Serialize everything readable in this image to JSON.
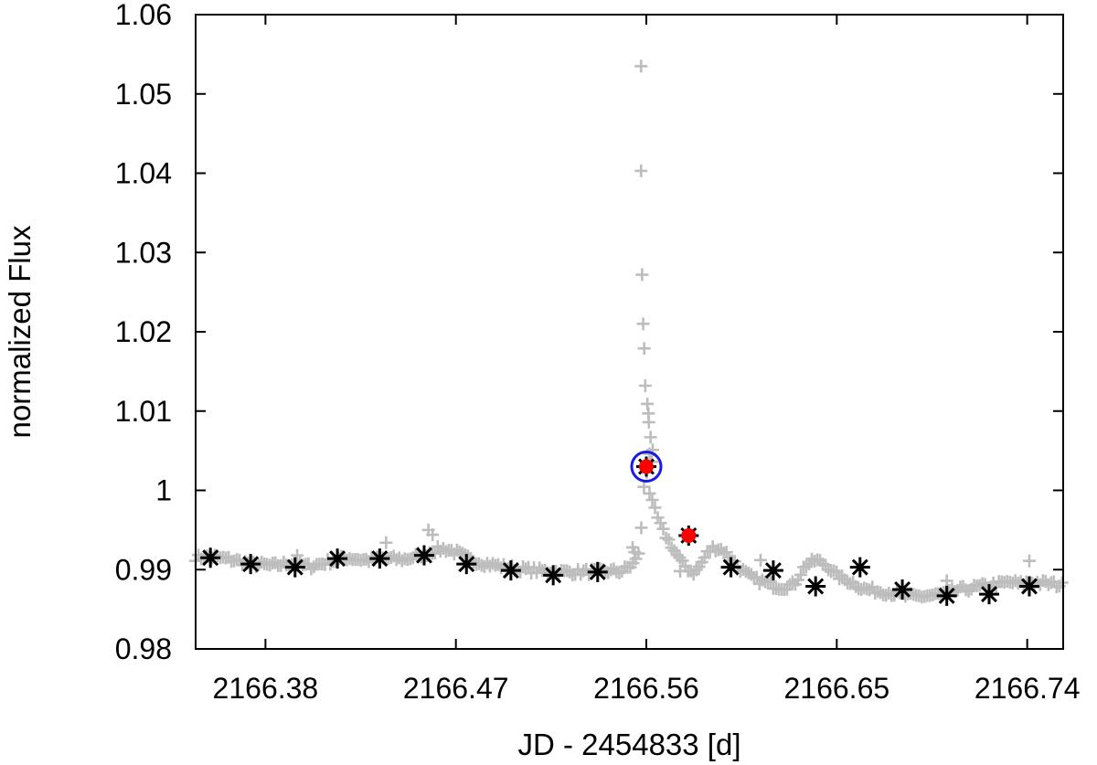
{
  "chart_data": {
    "type": "scatter",
    "title": "",
    "xlabel": "JD - 2454833 [d]",
    "ylabel": "normalized Flux",
    "xlim": [
      2166.347,
      2166.757
    ],
    "ylim": [
      0.98,
      1.06
    ],
    "x_ticks": [
      2166.38,
      2166.47,
      2166.56,
      2166.65,
      2166.74
    ],
    "x_tick_labels": [
      "2166.38",
      "2166.47",
      "2166.56",
      "2166.65",
      "2166.74"
    ],
    "y_ticks": [
      0.98,
      0.99,
      1.0,
      1.01,
      1.02,
      1.03,
      1.04,
      1.05,
      1.06
    ],
    "y_tick_labels": [
      "0.98",
      "0.99",
      "1",
      "1.01",
      "1.02",
      "1.03",
      "1.04",
      "1.05",
      "1.06"
    ],
    "grid": false,
    "colors": {
      "raw": "#bdbdbd",
      "binned": "#000000",
      "highlight": "#ff0000",
      "circle": "#1a1ae6"
    },
    "series": [
      {
        "marker": "plus",
        "color": "#bdbdbd",
        "curve": {
          "x": [
            2166.347,
            2166.356,
            2166.365,
            2166.374,
            2166.383,
            2166.392,
            2166.401,
            2166.41,
            2166.419,
            2166.428,
            2166.437,
            2166.446,
            2166.455,
            2166.461,
            2166.465,
            2166.47,
            2166.477,
            2166.485,
            2166.494,
            2166.503,
            2166.512,
            2166.521,
            2166.53,
            2166.539,
            2166.548,
            2166.553,
            2166.556,
            2166.558,
            2166.559,
            2166.56,
            2166.561,
            2166.562,
            2166.564,
            2166.566,
            2166.568,
            2166.571,
            2166.574,
            2166.577,
            2166.58,
            2166.583,
            2166.586,
            2166.589,
            2166.592,
            2166.596,
            2166.6,
            2166.604,
            2166.608,
            2166.612,
            2166.617,
            2166.621,
            2166.625,
            2166.63,
            2166.635,
            2166.64,
            2166.645,
            2166.649,
            2166.653,
            2166.658,
            2166.662,
            2166.667,
            2166.672,
            2166.677,
            2166.682,
            2166.687,
            2166.692,
            2166.697,
            2166.702,
            2166.707,
            2166.712,
            2166.717,
            2166.722,
            2166.727,
            2166.732,
            2166.737,
            2166.742,
            2166.747,
            2166.752,
            2166.757
          ],
          "y": [
            0.9915,
            0.9916,
            0.9912,
            0.9907,
            0.9905,
            0.9908,
            0.9904,
            0.991,
            0.9915,
            0.9912,
            0.9914,
            0.9913,
            0.992,
            0.9925,
            0.9926,
            0.9922,
            0.9912,
            0.9907,
            0.9903,
            0.99,
            0.9898,
            0.9897,
            0.9897,
            0.9898,
            0.9898,
            0.9905,
            0.9915,
            0.996,
            1.001,
            1.003,
            1.0005,
            0.999,
            0.9975,
            0.996,
            0.9948,
            0.9935,
            0.992,
            0.9908,
            0.99,
            0.9896,
            0.9908,
            0.9922,
            0.9928,
            0.9925,
            0.9915,
            0.9902,
            0.9893,
            0.9887,
            0.9883,
            0.9879,
            0.9878,
            0.9882,
            0.9905,
            0.9912,
            0.9906,
            0.9895,
            0.9888,
            0.9883,
            0.9876,
            0.9874,
            0.9872,
            0.987,
            0.9867,
            0.9866,
            0.9867,
            0.9868,
            0.987,
            0.9874,
            0.9876,
            0.9878,
            0.988,
            0.9882,
            0.9884,
            0.9882,
            0.9884,
            0.9883,
            0.9882,
            0.988
          ],
          "step": 0.0013,
          "scatter": 0.0004
        },
        "spike_points": [
          {
            "x": 2166.5575,
            "y": 1.0535
          },
          {
            "x": 2166.5575,
            "y": 1.0403
          },
          {
            "x": 2166.558,
            "y": 1.0272
          },
          {
            "x": 2166.5585,
            "y": 1.021
          },
          {
            "x": 2166.559,
            "y": 1.0179
          },
          {
            "x": 2166.5595,
            "y": 1.0132
          },
          {
            "x": 2166.5605,
            "y": 1.0109
          },
          {
            "x": 2166.561,
            "y": 1.0097
          },
          {
            "x": 2166.5612,
            "y": 1.0086
          },
          {
            "x": 2166.562,
            "y": 1.0067
          },
          {
            "x": 2166.563,
            "y": 1.0051
          },
          {
            "x": 2166.5615,
            "y": 1.0046
          },
          {
            "x": 2166.5625,
            "y": 1.0036
          },
          {
            "x": 2166.5535,
            "y": 0.9928
          },
          {
            "x": 2166.5545,
            "y": 0.9922
          }
        ],
        "outlier_points": [
          {
            "x": 2166.437,
            "y": 0.9934
          },
          {
            "x": 2166.457,
            "y": 0.995
          },
          {
            "x": 2166.459,
            "y": 0.9944
          },
          {
            "x": 2166.741,
            "y": 0.9911
          },
          {
            "x": 2166.702,
            "y": 0.9886
          },
          {
            "x": 2166.614,
            "y": 0.9912
          },
          {
            "x": 2166.576,
            "y": 0.9898
          },
          {
            "x": 2166.395,
            "y": 0.9918
          }
        ]
      },
      {
        "marker": "asterisk",
        "color": "#000000",
        "x": [
          2166.354,
          2166.373,
          2166.394,
          2166.414,
          2166.434,
          2166.455,
          2166.475,
          2166.496,
          2166.516,
          2166.537,
          2166.56,
          2166.58,
          2166.6,
          2166.62,
          2166.64,
          2166.661,
          2166.681,
          2166.702,
          2166.722,
          2166.741
        ],
        "y": [
          0.9915,
          0.9907,
          0.9903,
          0.9914,
          0.9914,
          0.9918,
          0.9907,
          0.9899,
          0.9893,
          0.9897,
          1.003,
          0.9943,
          0.9903,
          0.9899,
          0.9879,
          0.9903,
          0.9875,
          0.9867,
          0.9869,
          0.9879
        ]
      },
      {
        "marker": "dot",
        "color": "#ff0000",
        "x": [
          2166.56,
          2166.58
        ],
        "y": [
          1.003,
          0.9943
        ]
      },
      {
        "marker": "circle",
        "color": "#1a1ae6",
        "x": [
          2166.56
        ],
        "y": [
          1.003
        ]
      }
    ]
  }
}
